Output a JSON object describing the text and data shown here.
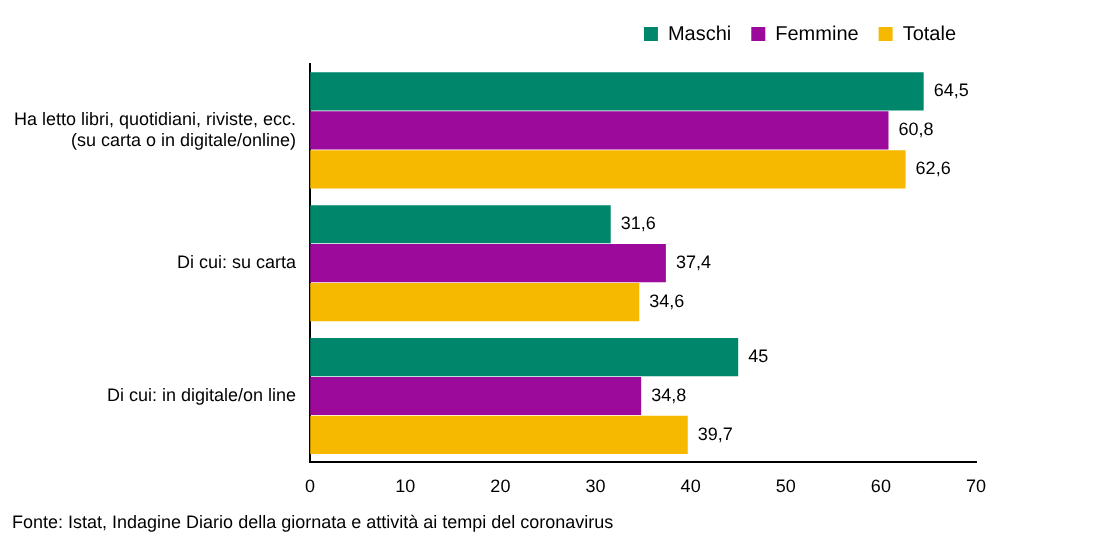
{
  "chart_data": {
    "type": "bar",
    "orientation": "horizontal",
    "categories": [
      "Ha letto libri, quotidiani, riviste, ecc.\n(su carta o in digitale/online)",
      "Di cui: su carta",
      "Di cui: in digitale/on line"
    ],
    "series": [
      {
        "name": "Maschi",
        "color": "#00876b",
        "values": [
          64.5,
          31.6,
          45
        ]
      },
      {
        "name": "Femmine",
        "color": "#9c0a9c",
        "values": [
          60.8,
          37.4,
          34.8
        ]
      },
      {
        "name": "Totale",
        "color": "#f7b900",
        "values": [
          62.6,
          34.6,
          39.7
        ]
      }
    ],
    "value_labels": [
      [
        "64,5",
        "31,6",
        "45"
      ],
      [
        "60,8",
        "37,4",
        "34,8"
      ],
      [
        "62,6",
        "34,6",
        "39,7"
      ]
    ],
    "xlim": [
      0,
      70
    ],
    "xticks": [
      0,
      10,
      20,
      30,
      40,
      50,
      60,
      70
    ],
    "grid": false,
    "legend": "top right",
    "annotations": [
      "Fonte: Istat, Indagine Diario della giornata e attività ai tempi del coronavirus"
    ]
  }
}
